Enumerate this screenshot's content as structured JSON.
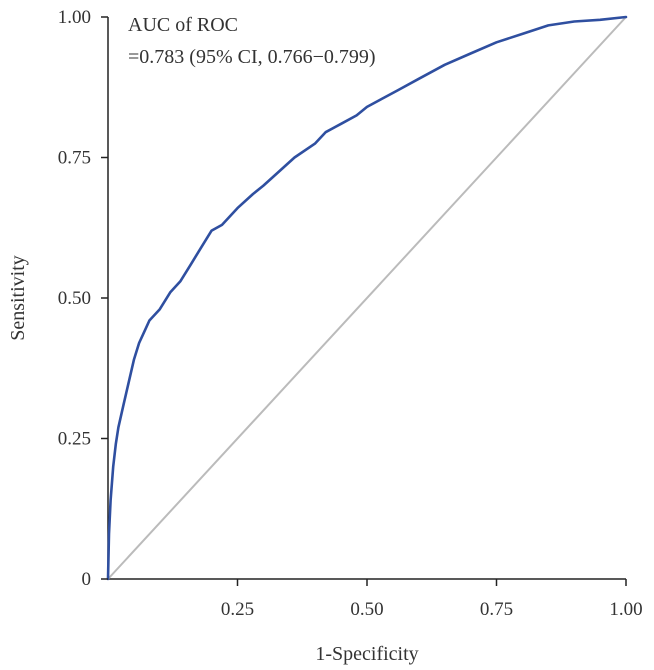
{
  "chart_data": {
    "type": "line",
    "title": "",
    "xlabel": "1-Specificity",
    "ylabel": "Sensitivity",
    "xlim": [
      0,
      1
    ],
    "ylim": [
      0,
      1
    ],
    "x_ticks": [
      {
        "value": 0.25,
        "label": "0.25"
      },
      {
        "value": 0.5,
        "label": "0.50"
      },
      {
        "value": 0.75,
        "label": "0.75"
      },
      {
        "value": 1.0,
        "label": "1.00"
      }
    ],
    "y_ticks": [
      {
        "value": 0,
        "label": "0"
      },
      {
        "value": 0.25,
        "label": "0.25"
      },
      {
        "value": 0.5,
        "label": "0.50"
      },
      {
        "value": 0.75,
        "label": "0.75"
      },
      {
        "value": 1.0,
        "label": "1.00"
      }
    ],
    "grid": false,
    "annotation": {
      "line1": "AUC of ROC",
      "line2": "=0.783 (95% CI, 0.766−0.799)"
    },
    "series": [
      {
        "color": "#2f4fa0",
        "x": [
          0,
          0.002,
          0.005,
          0.01,
          0.015,
          0.02,
          0.03,
          0.04,
          0.05,
          0.06,
          0.07,
          0.08,
          0.09,
          0.1,
          0.12,
          0.14,
          0.16,
          0.18,
          0.2,
          0.22,
          0.25,
          0.28,
          0.3,
          0.33,
          0.36,
          0.4,
          0.42,
          0.45,
          0.48,
          0.5,
          0.53,
          0.56,
          0.6,
          0.65,
          0.7,
          0.75,
          0.8,
          0.85,
          0.9,
          0.95,
          1.0
        ],
        "y": [
          0,
          0.08,
          0.14,
          0.2,
          0.24,
          0.27,
          0.31,
          0.35,
          0.39,
          0.42,
          0.44,
          0.46,
          0.47,
          0.48,
          0.51,
          0.53,
          0.56,
          0.59,
          0.62,
          0.63,
          0.66,
          0.685,
          0.7,
          0.725,
          0.75,
          0.775,
          0.795,
          0.81,
          0.825,
          0.84,
          0.855,
          0.87,
          0.89,
          0.915,
          0.935,
          0.955,
          0.97,
          0.985,
          0.992,
          0.995,
          1.0
        ]
      },
      {
        "color": "#bbbbbb",
        "x": [
          0,
          1
        ],
        "y": [
          0,
          1
        ]
      }
    ]
  }
}
